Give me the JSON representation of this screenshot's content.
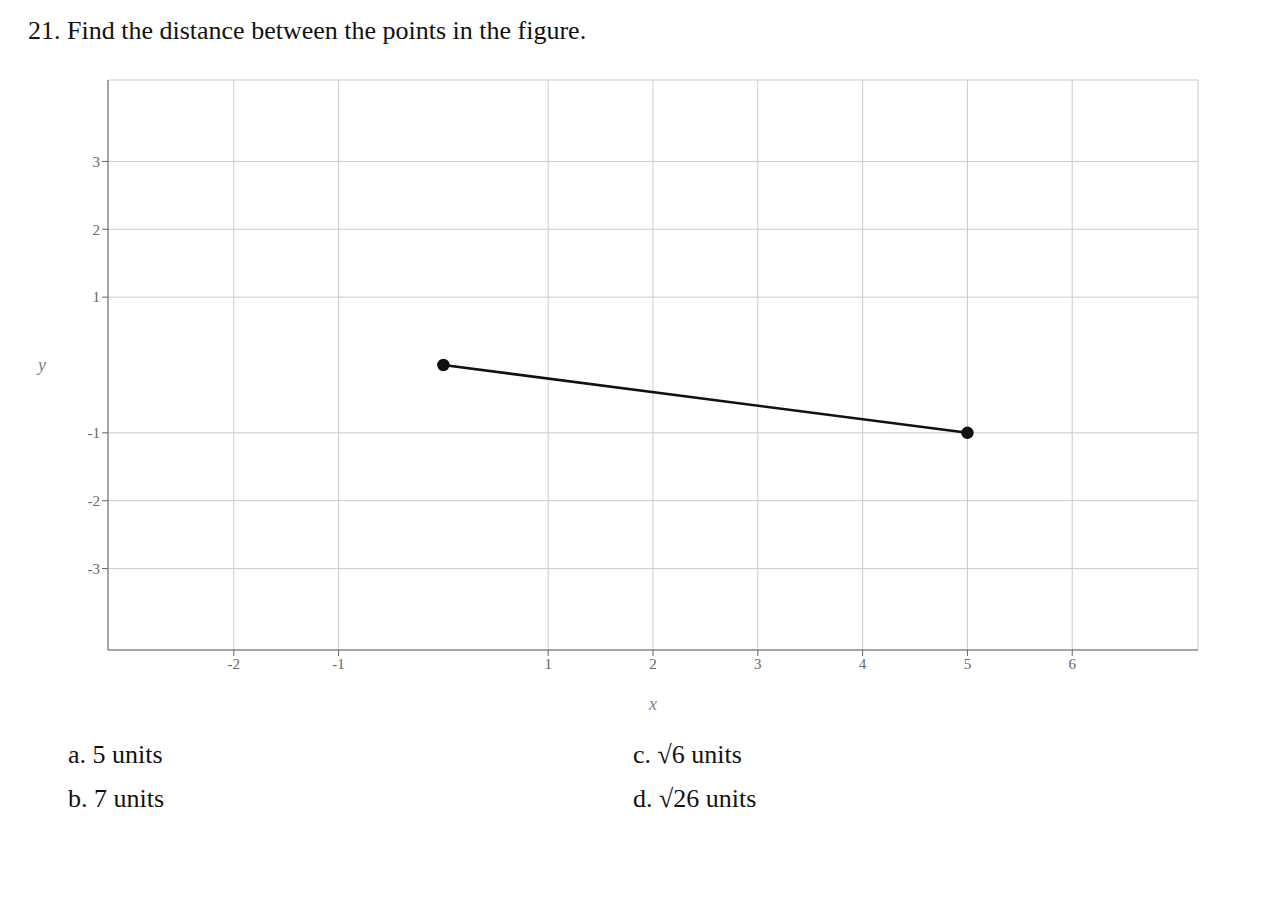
{
  "chart_data": {
    "type": "line",
    "title": "21. Find the distance between the points in the figure.",
    "xlabel": "x",
    "ylabel": "y",
    "x": [
      0,
      5
    ],
    "values": [
      0,
      -1
    ],
    "color": "#111111",
    "marker": "circle",
    "xlim": [
      -3.2,
      7.2
    ],
    "ylim": [
      -4.2,
      4.2
    ],
    "xticks": [
      -2,
      -1,
      1,
      2,
      3,
      4,
      5,
      6
    ],
    "yticks": [
      -3,
      -2,
      -1,
      1,
      2,
      3
    ],
    "grid": true,
    "annotations": [
      "a. 5 units",
      "b. 7 units",
      "c. √6 units",
      "d. √26 units"
    ]
  }
}
